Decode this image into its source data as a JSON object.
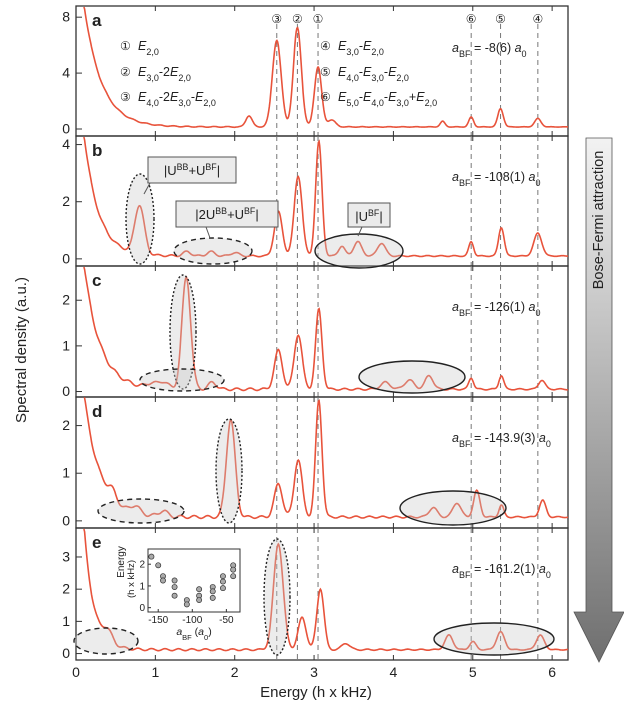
{
  "colors": {
    "trace": "#e8533b",
    "axis": "#333333",
    "dash": "#777777",
    "fill": "#dedede"
  },
  "chart_data": [
    {
      "type": "line",
      "panel_label": "a",
      "ylim": [
        -0.5,
        8.8
      ],
      "yticks": [
        0,
        4,
        8
      ],
      "a_bf": "a_BF = -8(6) a_0",
      "legend": [
        {
          "marker": "①",
          "text": "E_2,0"
        },
        {
          "marker": "②",
          "text": "E_3,0-2E_2,0"
        },
        {
          "marker": "③",
          "text": "E_4,0-2E_3,0-E_2,0"
        },
        {
          "marker": "④",
          "text": "E_3,0-E_2,0"
        },
        {
          "marker": "⑤",
          "text": "E_4,0-E_3,0-E_2,0"
        },
        {
          "marker": "⑥",
          "text": "E_5,0-E_4,0-E_3,0+E_2,0"
        }
      ],
      "baseline": 0.15,
      "peaks": [
        [
          2.18,
          0.8,
          0.04
        ],
        [
          2.53,
          6.2,
          0.055
        ],
        [
          2.79,
          7.1,
          0.05
        ],
        [
          3.05,
          4.3,
          0.045
        ],
        [
          3.22,
          0.5,
          0.05
        ],
        [
          4.62,
          0.4,
          0.03
        ],
        [
          4.98,
          0.7,
          0.03
        ],
        [
          5.35,
          1.3,
          0.035
        ],
        [
          5.82,
          0.6,
          0.04
        ]
      ],
      "divergence": [
        8.8,
        0.22
      ]
    },
    {
      "type": "line",
      "panel_label": "b",
      "ylim": [
        -0.25,
        4.3
      ],
      "yticks": [
        0,
        2,
        4
      ],
      "a_bf": "a_BF = -108(1) a_0",
      "annotations": [
        "|U^BB+U^BF|",
        "|2U^BB+U^BF|",
        "|U^BF|"
      ],
      "baseline": 0.1,
      "peaks": [
        [
          0.8,
          1.7,
          0.06
        ],
        [
          1.4,
          0.15,
          0.05
        ],
        [
          1.7,
          0.15,
          0.05
        ],
        [
          2.0,
          0.12,
          0.05
        ],
        [
          2.55,
          1.55,
          0.05
        ],
        [
          2.8,
          2.8,
          0.05
        ],
        [
          3.06,
          4.0,
          0.04
        ],
        [
          3.35,
          0.35,
          0.04
        ],
        [
          3.55,
          0.5,
          0.05
        ],
        [
          3.85,
          0.45,
          0.05
        ],
        [
          4.98,
          0.5,
          0.03
        ],
        [
          5.36,
          1.0,
          0.035
        ],
        [
          5.82,
          0.8,
          0.05
        ]
      ],
      "divergence": [
        4.3,
        0.18
      ]
    },
    {
      "type": "line",
      "panel_label": "c",
      "ylim": [
        -0.12,
        2.75
      ],
      "yticks": [
        0,
        1,
        2
      ],
      "a_bf": "a_BF = -126(1) a_0",
      "baseline": 0.05,
      "peaks": [
        [
          0.95,
          0.1,
          0.06
        ],
        [
          1.1,
          0.15,
          0.06
        ],
        [
          1.39,
          2.45,
          0.055
        ],
        [
          1.72,
          0.15,
          0.05
        ],
        [
          2.55,
          0.85,
          0.05
        ],
        [
          2.8,
          1.2,
          0.05
        ],
        [
          3.06,
          1.75,
          0.04
        ],
        [
          3.9,
          0.15,
          0.06
        ],
        [
          4.2,
          0.2,
          0.06
        ],
        [
          4.45,
          0.3,
          0.05
        ],
        [
          4.98,
          0.25,
          0.03
        ],
        [
          5.36,
          0.3,
          0.03
        ],
        [
          5.87,
          0.2,
          0.04
        ]
      ],
      "divergence": [
        2.75,
        0.2
      ]
    },
    {
      "type": "line",
      "panel_label": "d",
      "ylim": [
        -0.15,
        2.6
      ],
      "yticks": [
        0,
        1,
        2
      ],
      "a_bf": "a_BF = -143.9(3) a_0",
      "baseline": 0.08,
      "peaks": [
        [
          0.45,
          0.18,
          0.05
        ],
        [
          0.75,
          0.15,
          0.05
        ],
        [
          1.1,
          0.12,
          0.05
        ],
        [
          1.95,
          2.05,
          0.055
        ],
        [
          2.55,
          0.7,
          0.05
        ],
        [
          2.8,
          1.2,
          0.05
        ],
        [
          3.06,
          2.45,
          0.04
        ],
        [
          4.5,
          0.2,
          0.05
        ],
        [
          4.8,
          0.3,
          0.05
        ],
        [
          5.05,
          0.55,
          0.04
        ],
        [
          5.36,
          0.25,
          0.03
        ],
        [
          5.88,
          0.35,
          0.04
        ]
      ],
      "divergence": [
        2.6,
        0.2
      ]
    },
    {
      "type": "line",
      "panel_label": "e",
      "ylim": [
        -0.2,
        3.9
      ],
      "yticks": [
        0,
        1,
        2,
        3
      ],
      "a_bf": "a_BF = -161.2(1) a_0",
      "baseline": 0.12,
      "peaks": [
        [
          0.4,
          0.35,
          0.06
        ],
        [
          2.55,
          3.3,
          0.06
        ],
        [
          2.85,
          1.0,
          0.05
        ],
        [
          3.08,
          1.9,
          0.045
        ],
        [
          3.4,
          0.2,
          0.05
        ],
        [
          4.7,
          0.45,
          0.05
        ],
        [
          5.0,
          0.25,
          0.04
        ],
        [
          5.35,
          0.55,
          0.05
        ],
        [
          5.85,
          0.45,
          0.05
        ]
      ],
      "divergence": [
        3.9,
        0.12
      ]
    }
  ],
  "inset": {
    "ylabel_line1": "Energy",
    "ylabel_line2": "(h x kHz)",
    "xlabel": "a_BF (a_0)",
    "xticks": [
      -150,
      -100,
      -50
    ],
    "yticks": [
      0,
      1,
      2
    ],
    "xlim": [
      -165,
      -30
    ],
    "ylim": [
      -0.2,
      2.7
    ],
    "points": [
      [
        -160,
        2.35
      ],
      [
        -150,
        1.95
      ],
      [
        -143,
        1.45
      ],
      [
        -143,
        1.25
      ],
      [
        -126,
        1.25
      ],
      [
        -126,
        0.95
      ],
      [
        -126,
        0.55
      ],
      [
        -108,
        0.35
      ],
      [
        -108,
        0.15
      ],
      [
        -90,
        0.85
      ],
      [
        -90,
        0.55
      ],
      [
        -90,
        0.35
      ],
      [
        -70,
        0.95
      ],
      [
        -70,
        0.75
      ],
      [
        -70,
        0.45
      ],
      [
        -55,
        1.45
      ],
      [
        -55,
        1.2
      ],
      [
        -55,
        0.9
      ],
      [
        -40,
        1.95
      ],
      [
        -40,
        1.75
      ],
      [
        -40,
        1.45
      ]
    ]
  },
  "lines": [
    {
      "marker": "①",
      "energy": 3.05
    },
    {
      "marker": "②",
      "energy": 2.79
    },
    {
      "marker": "③",
      "energy": 2.53
    },
    {
      "marker": "④",
      "energy": 5.82
    },
    {
      "marker": "⑤",
      "energy": 5.35
    },
    {
      "marker": "⑥",
      "energy": 4.98
    }
  ],
  "xaxis": {
    "label": "Energy (h x kHz)",
    "xlim": [
      0,
      6.2
    ],
    "ticks": [
      0,
      1,
      2,
      3,
      4,
      5,
      6
    ]
  },
  "yaxis": {
    "label": "Spectral density (a.u.)"
  },
  "arrow": {
    "label": "Bose-Fermi attraction"
  }
}
